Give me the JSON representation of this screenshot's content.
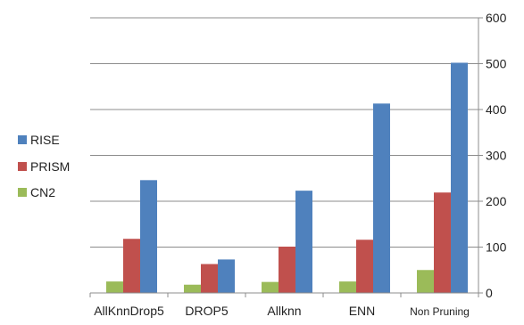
{
  "chart_data": {
    "type": "bar",
    "title": "",
    "xlabel": "",
    "ylabel": "",
    "categories": [
      "AllKnnDrop5",
      "DROP5",
      "Allknn",
      "ENN",
      "Non Pruning"
    ],
    "series": [
      {
        "name": "CN2",
        "color": "#9BBB59",
        "values": [
          25,
          18,
          24,
          25,
          50
        ]
      },
      {
        "name": "PRISM",
        "color": "#C0504D",
        "values": [
          118,
          63,
          101,
          116,
          219
        ]
      },
      {
        "name": "RISE",
        "color": "#4F81BD",
        "values": [
          246,
          73,
          223,
          413,
          502
        ]
      }
    ],
    "legend_order": [
      "RISE",
      "PRISM",
      "CN2"
    ],
    "ylim": [
      0,
      600
    ],
    "yticks": [
      0,
      100,
      200,
      300,
      400,
      500,
      600
    ],
    "y_axis_position": "right",
    "grid": true,
    "legend_position": "left"
  }
}
